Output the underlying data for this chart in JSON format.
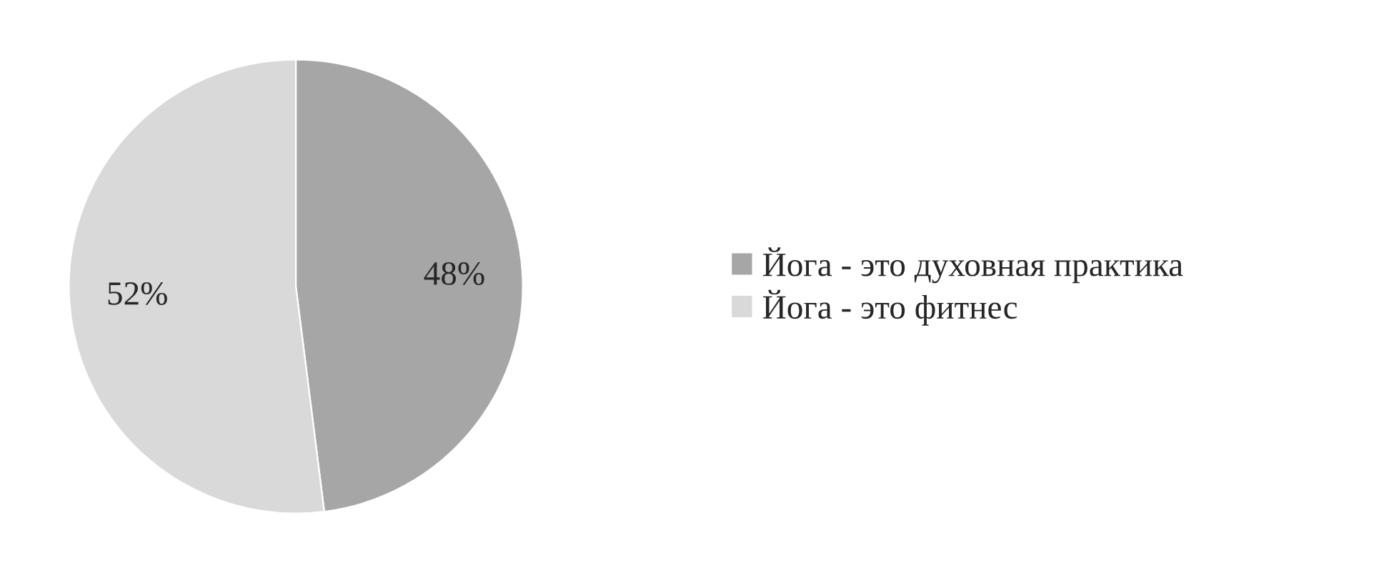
{
  "chart_data": {
    "type": "pie",
    "categories": [
      "Йога - это духовная практика",
      "Йога - это фитнес"
    ],
    "values": [
      48,
      52
    ],
    "colors": [
      "#a6a6a6",
      "#d9d9d9"
    ],
    "value_labels": [
      "48%",
      "52%"
    ],
    "legend": "right"
  }
}
